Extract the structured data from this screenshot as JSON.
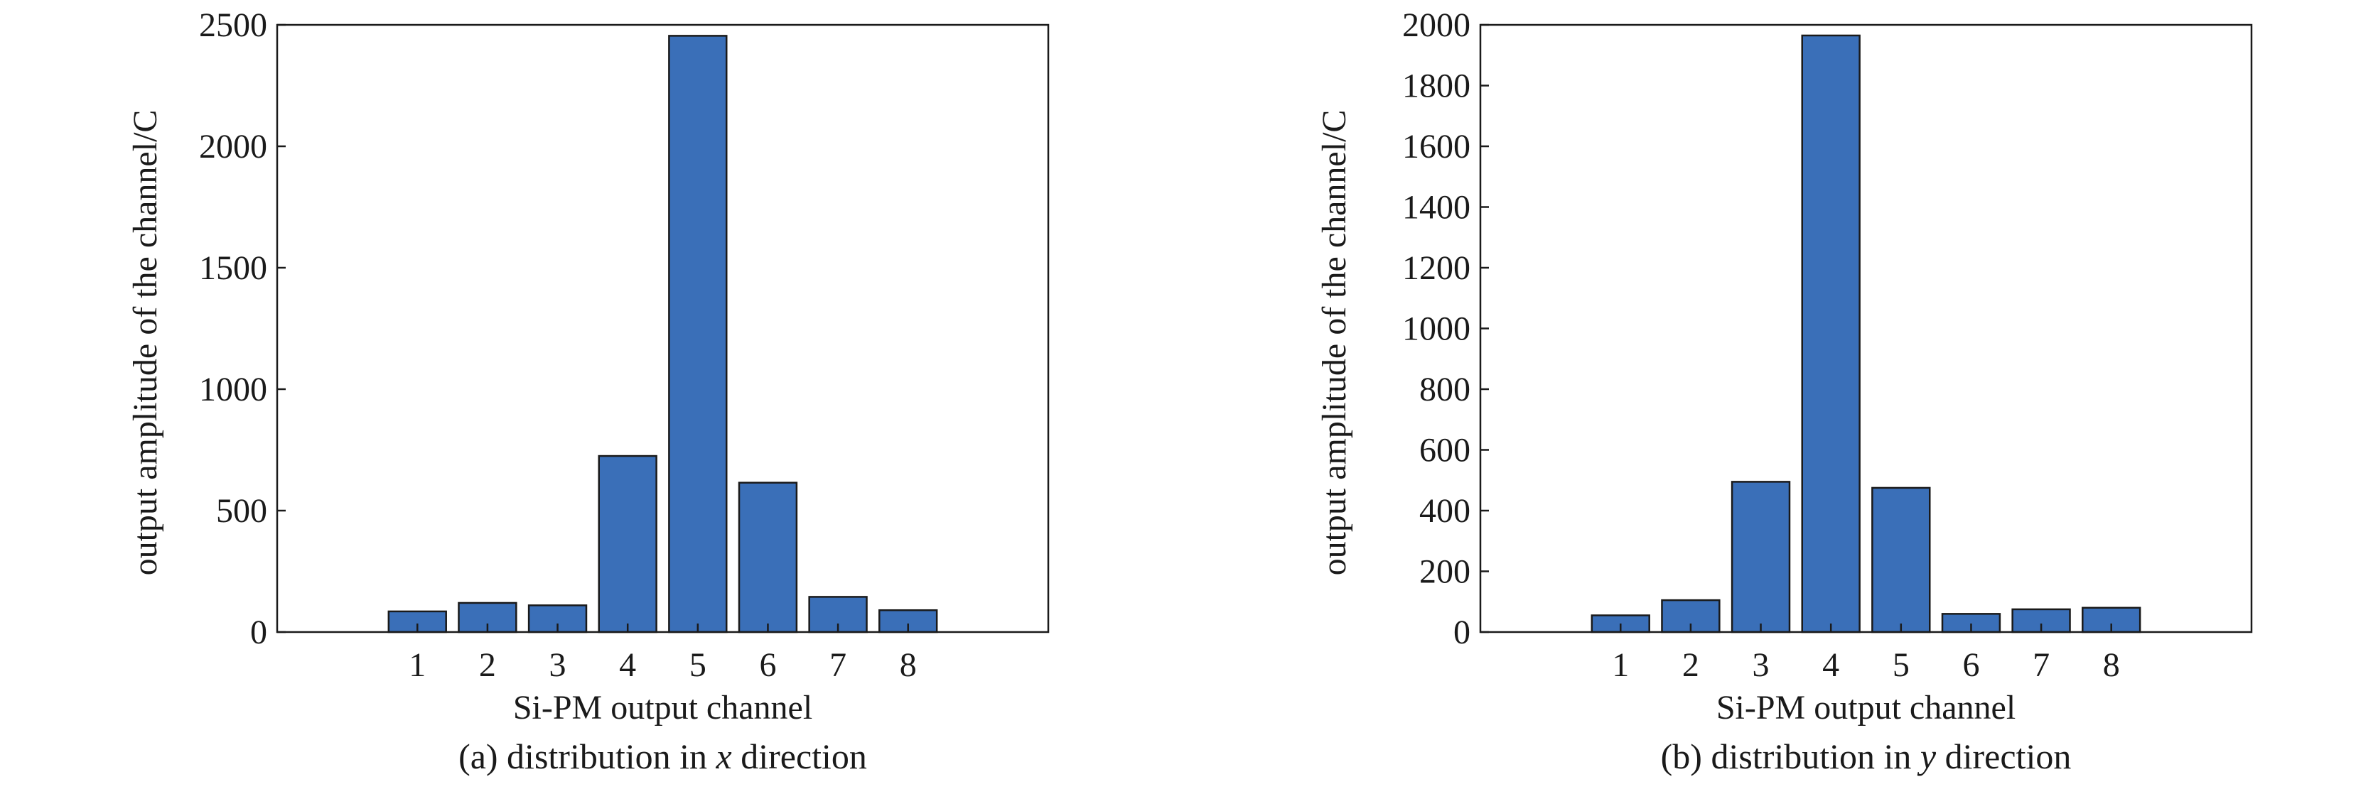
{
  "chart_data": [
    {
      "type": "bar",
      "categories": [
        "1",
        "2",
        "3",
        "4",
        "5",
        "6",
        "7",
        "8"
      ],
      "values": [
        85,
        120,
        110,
        725,
        2455,
        615,
        145,
        90
      ],
      "xlabel": "Si-PM output channel",
      "ylabel": "output amplitude of the channel/C",
      "ylim": [
        0,
        2500
      ],
      "yticks": [
        "0",
        "500",
        "1000",
        "1500",
        "2000",
        "2500"
      ],
      "xlim": [
        -1,
        10
      ],
      "caption": {
        "prefix": "(a) distribution in ",
        "variable": "x",
        "suffix": " direction"
      },
      "bar_color": "#3a6fb8",
      "grid": false
    },
    {
      "type": "bar",
      "categories": [
        "1",
        "2",
        "3",
        "4",
        "5",
        "6",
        "7",
        "8"
      ],
      "values": [
        55,
        105,
        495,
        1965,
        475,
        60,
        75,
        80
      ],
      "xlabel": "Si-PM output channel",
      "ylabel": "output amplitude of the channel/C",
      "ylim": [
        0,
        2000
      ],
      "yticks": [
        "0",
        "200",
        "400",
        "600",
        "800",
        "1000",
        "1200",
        "1400",
        "1600",
        "1800",
        "2000"
      ],
      "xlim": [
        -1,
        10
      ],
      "caption": {
        "prefix": "(b) distribution in ",
        "variable": "y",
        "suffix": " direction"
      },
      "bar_color": "#3a6fb8",
      "grid": false
    }
  ]
}
